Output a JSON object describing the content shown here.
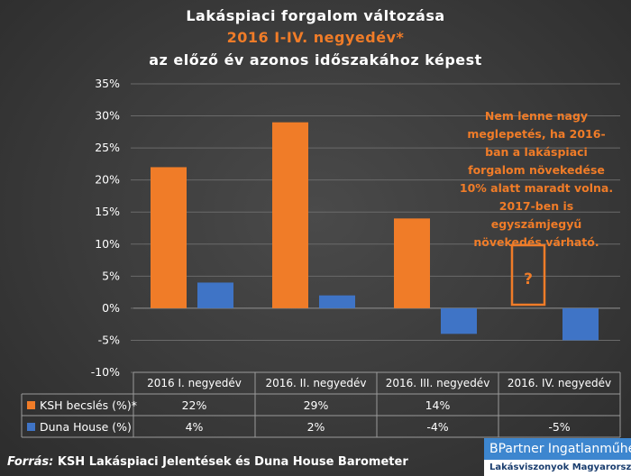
{
  "header": {
    "title_line1": "Lakáspiaci forgalom változása",
    "title_line2": "2016 I-IV. negyedév*",
    "title_line3": "az előző év azonos időszakához képest"
  },
  "annotation": {
    "text": "Nem lenne nagy meglepetés, ha 2016-ban a lakáspiaci forgalom növekedése 10% alatt maradt volna. 2017-ben is egyszámjegyű növekedés várható.",
    "question_mark": "?"
  },
  "footer": {
    "source_prefix": "Forrás:",
    "source_text": " KSH Lakáspiaci Jelentések és Duna House Barometer"
  },
  "logo": {
    "name": "BPartner Ingatlanműhely",
    "tagline": "Lakásviszonyok Magyarországon"
  },
  "colors": {
    "ksh": "#f07c28",
    "dh": "#3f74c6",
    "text": "#ffffff",
    "grid": "#6a6a6a"
  },
  "chart_data": {
    "type": "bar",
    "categories": [
      "2016 I. negyedév",
      "2016. II. negyedév",
      "2016. III. negyedév",
      "2016. IV. negyedév"
    ],
    "series": [
      {
        "name": "KSH becslés (%)*",
        "values": [
          22,
          29,
          14,
          null
        ],
        "labels": [
          "22%",
          "29%",
          "14%",
          ""
        ]
      },
      {
        "name": "Duna House (%)",
        "values": [
          4,
          2,
          -4,
          -5
        ],
        "labels": [
          "4%",
          "2%",
          "-4%",
          "-5%"
        ]
      }
    ],
    "yticks": [
      "35%",
      "30%",
      "25%",
      "20%",
      "15%",
      "10%",
      "5%",
      "0%",
      "-5%",
      "-10%"
    ],
    "ylim": [
      -10,
      35
    ],
    "ylabel": "",
    "xlabel": "",
    "legend": "data-table"
  }
}
